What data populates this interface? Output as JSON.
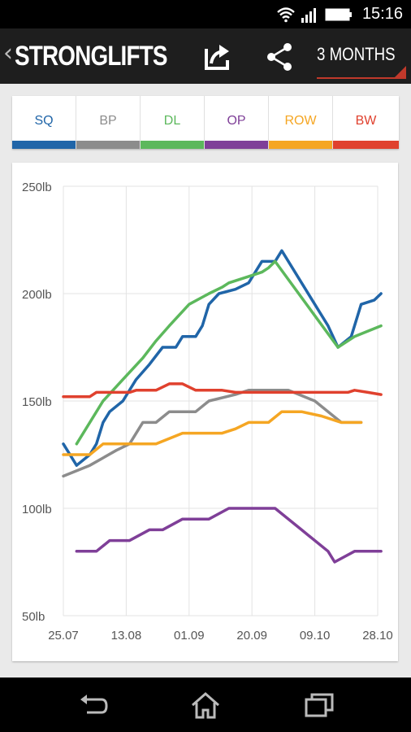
{
  "status_bar": {
    "time": "15:16"
  },
  "action_bar": {
    "title": "STRONGLIFTS",
    "period": "3 MONTHS",
    "accent": "#c0392b"
  },
  "tabs": [
    {
      "label": "SQ",
      "color": "#2065a8"
    },
    {
      "label": "BP",
      "color": "#8c8c8c"
    },
    {
      "label": "DL",
      "color": "#5cb85c"
    },
    {
      "label": "OP",
      "color": "#7f3f98"
    },
    {
      "label": "ROW",
      "color": "#f5a623"
    },
    {
      "label": "BW",
      "color": "#e0412e"
    }
  ],
  "chart_data": {
    "type": "line",
    "y_tick_labels": [
      "250lb",
      "200lb",
      "150lb",
      "100lb",
      "50lb"
    ],
    "x_tick_labels": [
      "25.07",
      "13.08",
      "01.09",
      "20.09",
      "09.10",
      "28.10"
    ],
    "ylim": [
      50,
      250
    ],
    "xlim": [
      0,
      95
    ],
    "grid": true,
    "series": [
      {
        "name": "SQ",
        "color": "#2065a8",
        "points": [
          [
            0,
            130
          ],
          [
            4,
            120
          ],
          [
            8,
            125
          ],
          [
            10,
            130
          ],
          [
            12,
            140
          ],
          [
            14,
            145
          ],
          [
            18,
            150
          ],
          [
            22,
            160
          ],
          [
            26,
            167
          ],
          [
            30,
            175
          ],
          [
            34,
            175
          ],
          [
            36,
            180
          ],
          [
            40,
            180
          ],
          [
            42,
            185
          ],
          [
            44,
            195
          ],
          [
            47,
            200
          ],
          [
            52,
            202
          ],
          [
            56,
            205
          ],
          [
            60,
            215
          ],
          [
            64,
            215
          ],
          [
            66,
            220
          ],
          [
            76,
            195
          ],
          [
            80,
            185
          ],
          [
            83,
            175
          ],
          [
            87,
            180
          ],
          [
            90,
            195
          ],
          [
            94,
            197
          ],
          [
            96,
            200
          ]
        ]
      },
      {
        "name": "BP",
        "color": "#8c8c8c",
        "points": [
          [
            0,
            115
          ],
          [
            8,
            120
          ],
          [
            16,
            127
          ],
          [
            20,
            130
          ],
          [
            24,
            140
          ],
          [
            28,
            140
          ],
          [
            32,
            145
          ],
          [
            36,
            145
          ],
          [
            40,
            145
          ],
          [
            44,
            150
          ],
          [
            52,
            153
          ],
          [
            56,
            155
          ],
          [
            64,
            155
          ],
          [
            68,
            155
          ],
          [
            76,
            150
          ],
          [
            84,
            140
          ],
          [
            88,
            140
          ],
          [
            90,
            140
          ]
        ]
      },
      {
        "name": "DL",
        "color": "#5cb85c",
        "points": [
          [
            4,
            130
          ],
          [
            12,
            150
          ],
          [
            18,
            160
          ],
          [
            24,
            170
          ],
          [
            28,
            178
          ],
          [
            32,
            185
          ],
          [
            38,
            195
          ],
          [
            44,
            200
          ],
          [
            48,
            203
          ],
          [
            50,
            205
          ],
          [
            56,
            208
          ],
          [
            60,
            210
          ],
          [
            62,
            212
          ],
          [
            64,
            215
          ],
          [
            83,
            175
          ],
          [
            88,
            180
          ],
          [
            96,
            185
          ]
        ]
      },
      {
        "name": "OP",
        "color": "#7f3f98",
        "points": [
          [
            4,
            80
          ],
          [
            10,
            80
          ],
          [
            14,
            85
          ],
          [
            20,
            85
          ],
          [
            26,
            90
          ],
          [
            30,
            90
          ],
          [
            36,
            95
          ],
          [
            44,
            95
          ],
          [
            50,
            100
          ],
          [
            60,
            100
          ],
          [
            64,
            100
          ],
          [
            72,
            90
          ],
          [
            80,
            80
          ],
          [
            82,
            75
          ],
          [
            88,
            80
          ],
          [
            96,
            80
          ]
        ]
      },
      {
        "name": "ROW",
        "color": "#f5a623",
        "points": [
          [
            0,
            125
          ],
          [
            8,
            125
          ],
          [
            12,
            130
          ],
          [
            24,
            130
          ],
          [
            28,
            130
          ],
          [
            36,
            135
          ],
          [
            48,
            135
          ],
          [
            52,
            137
          ],
          [
            56,
            140
          ],
          [
            62,
            140
          ],
          [
            66,
            145
          ],
          [
            72,
            145
          ],
          [
            78,
            143
          ],
          [
            84,
            140
          ],
          [
            88,
            140
          ],
          [
            90,
            140
          ]
        ]
      },
      {
        "name": "BW",
        "color": "#e0412e",
        "points": [
          [
            0,
            152
          ],
          [
            8,
            152
          ],
          [
            10,
            154
          ],
          [
            20,
            154
          ],
          [
            22,
            155
          ],
          [
            28,
            155
          ],
          [
            32,
            158
          ],
          [
            36,
            158
          ],
          [
            40,
            155
          ],
          [
            46,
            155
          ],
          [
            48,
            155
          ],
          [
            52,
            154
          ],
          [
            56,
            154
          ],
          [
            60,
            154
          ],
          [
            80,
            154
          ],
          [
            86,
            154
          ],
          [
            88,
            155
          ],
          [
            92,
            154
          ],
          [
            96,
            153
          ]
        ]
      }
    ]
  }
}
